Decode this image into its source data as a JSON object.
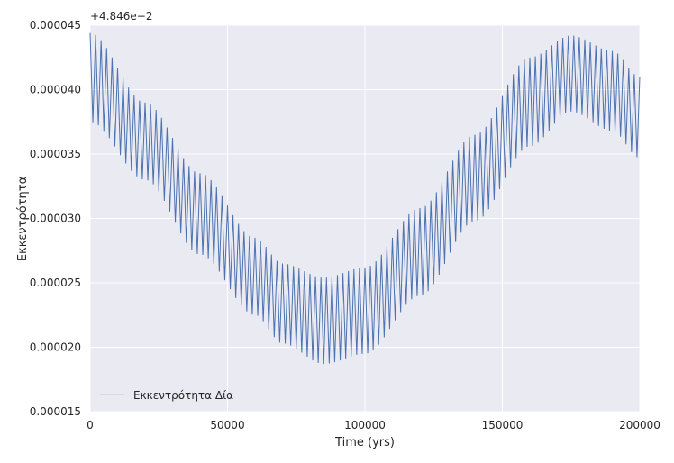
{
  "chart_data": {
    "type": "line",
    "xlabel": "Time (yrs)",
    "ylabel": "Εκκεντρότητα",
    "offset_text": "+4.846e−2",
    "xlim": [
      0,
      200000
    ],
    "ylim": [
      1.5e-05,
      4.5e-05
    ],
    "x_ticks": [
      "0",
      "50000",
      "100000",
      "150000",
      "200000"
    ],
    "y_ticks": [
      "0.000015",
      "0.000020",
      "0.000025",
      "0.000030",
      "0.000035",
      "0.000040",
      "0.000045"
    ],
    "grid": true,
    "legend_position": "lower-left",
    "series": [
      {
        "name": "Εκκεντρότητα Δία",
        "color": "#4c72b0",
        "x_range": [
          0,
          200000
        ],
        "upper_envelope": {
          "x": [
            0,
            20000,
            40000,
            60000,
            70000,
            85000,
            100000,
            120000,
            140000,
            160000,
            175000,
            190000,
            200000
          ],
          "y": [
            4.44e-05,
            3.9e-05,
            3.35e-05,
            2.85e-05,
            2.65e-05,
            2.54e-05,
            2.62e-05,
            3.08e-05,
            3.65e-05,
            4.25e-05,
            4.42e-05,
            4.3e-05,
            4.1e-05
          ]
        },
        "lower_envelope": {
          "x": [
            0,
            20000,
            40000,
            60000,
            70000,
            85000,
            100000,
            120000,
            140000,
            160000,
            175000,
            190000,
            200000
          ],
          "y": [
            3.75e-05,
            3.3e-05,
            2.72e-05,
            2.25e-05,
            2.03e-05,
            1.87e-05,
            1.95e-05,
            2.4e-05,
            2.98e-05,
            3.56e-05,
            3.83e-05,
            3.68e-05,
            3.47e-05
          ]
        },
        "oscillation_period": 2000
      }
    ]
  }
}
